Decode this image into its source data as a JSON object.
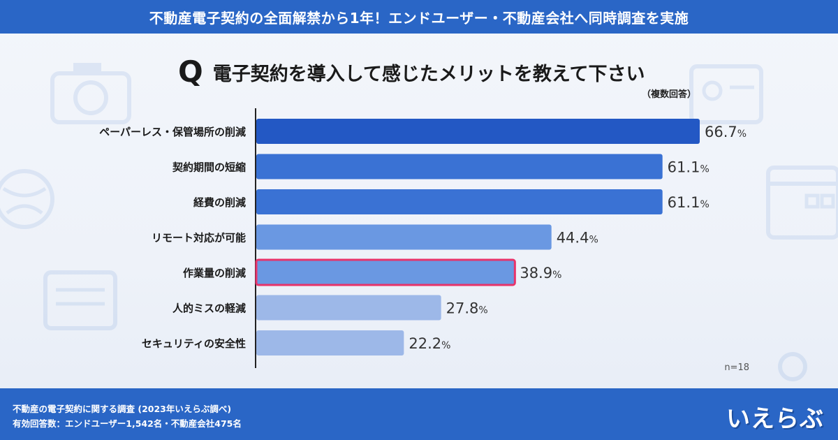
{
  "header": {
    "title": "不動産電子契約の全面解禁から1年！エンドユーザー・不動産会社へ同時調査を実施"
  },
  "question": {
    "q_letter": "Q",
    "text": "電子契約を導入して感じたメリットを教えて下さい",
    "note": "（複数回答）"
  },
  "chart_data": {
    "type": "bar",
    "orientation": "horizontal",
    "title": "電子契約を導入して感じたメリットを教えて下さい",
    "categories": [
      "ペーパーレス・保管場所の削減",
      "契約期間の短縮",
      "経費の削減",
      "リモート対応が可能",
      "作業量の削減",
      "人的ミスの軽減",
      "セキュリティの安全性"
    ],
    "values": [
      66.7,
      61.1,
      61.1,
      44.4,
      38.9,
      27.8,
      22.2
    ],
    "value_labels": [
      "66.7",
      "61.1",
      "61.1",
      "44.4",
      "38.9",
      "27.8",
      "22.2"
    ],
    "unit": "%",
    "xlim": [
      0,
      66.7
    ],
    "highlight_index": 4,
    "bar_colors": [
      "#2358c4",
      "#3a72d4",
      "#3a72d4",
      "#6a98e2",
      "#6a98e2",
      "#9db8e8",
      "#9db8e8"
    ],
    "highlight_color": "#e8336a",
    "sample_size": "n=18"
  },
  "footer": {
    "line1": "不動産の電子契約に関する調査 (2023年いえらぶ調べ)",
    "line2": "有効回答数：エンドユーザー1,542名・不動産会社475名",
    "logo": "いえらぶ"
  },
  "colors": {
    "header_bg": "#2a66c6",
    "footer_bg": "#2a66c6"
  }
}
